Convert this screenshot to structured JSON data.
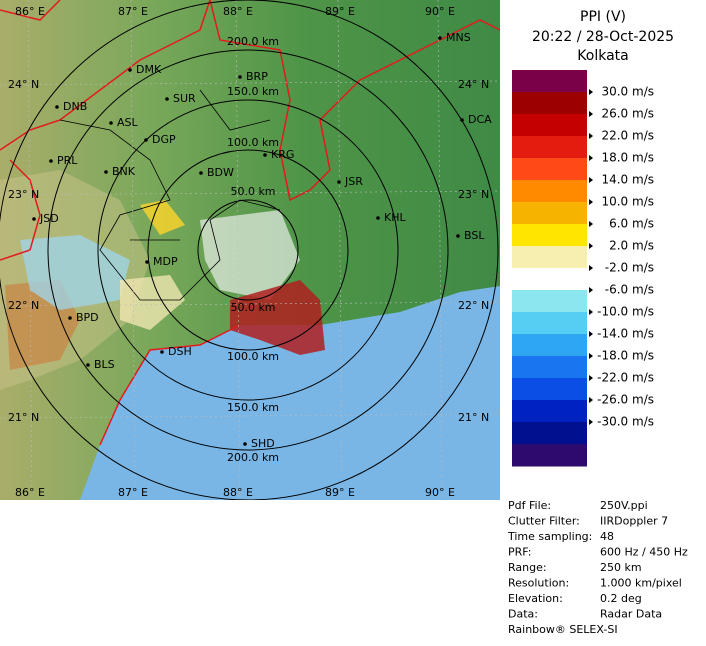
{
  "header": {
    "title": "PPI (V)",
    "datetime": "20:22 / 28-Oct-2025",
    "location": "Kolkata"
  },
  "legend": {
    "colors": [
      "#7a0048",
      "#9c0000",
      "#c40000",
      "#e41c10",
      "#ff4a18",
      "#ff8a00",
      "#f6b400",
      "#ffe600",
      "#f7efb0",
      "#ffffff",
      "#8ce6f0",
      "#56cdf2",
      "#2ea6f2",
      "#1a76f0",
      "#0a4ee6",
      "#0022c0",
      "#00108e",
      "#2e0a6e"
    ],
    "labels": [
      "30.0 m/s",
      "26.0 m/s",
      "22.0 m/s",
      "18.0 m/s",
      "14.0 m/s",
      "10.0 m/s",
      "6.0 m/s",
      "2.0 m/s",
      "-2.0 m/s",
      "-6.0 m/s",
      "-10.0 m/s",
      "-14.0 m/s",
      "-18.0 m/s",
      "-22.0 m/s",
      "-26.0 m/s",
      "-30.0 m/s"
    ]
  },
  "map": {
    "longitudes": [
      "86° E",
      "87° E",
      "88° E",
      "89° E",
      "90° E"
    ],
    "latitudes": [
      "24° N",
      "23° N",
      "22° N",
      "21° N"
    ],
    "rings": [
      "50.0 km",
      "100.0 km",
      "150.0 km",
      "200.0 km"
    ],
    "stations": [
      "DMK",
      "BRP",
      "MNS",
      "DNB",
      "SUR",
      "ASL",
      "DGP",
      "DCA",
      "PRL",
      "BNK",
      "KRG",
      "BDW",
      "JSR",
      "KHL",
      "BSL",
      "JSD",
      "MDP",
      "BPD",
      "DSH",
      "BLS",
      "SHD"
    ]
  },
  "info": {
    "rows": [
      [
        "Pdf File:",
        "250V.ppi"
      ],
      [
        "Clutter Filter:",
        "IIRDoppler 7"
      ],
      [
        "Time sampling:",
        "48"
      ],
      [
        "PRF:",
        "600 Hz / 450 Hz"
      ],
      [
        "Range:",
        "250 km"
      ],
      [
        "Resolution:",
        "1.000 km/pixel"
      ],
      [
        "Elevation:",
        "0.2 deg"
      ],
      [
        "Data:",
        "Radar Data"
      ]
    ],
    "footer": "Rainbow® SELEX-SI"
  }
}
